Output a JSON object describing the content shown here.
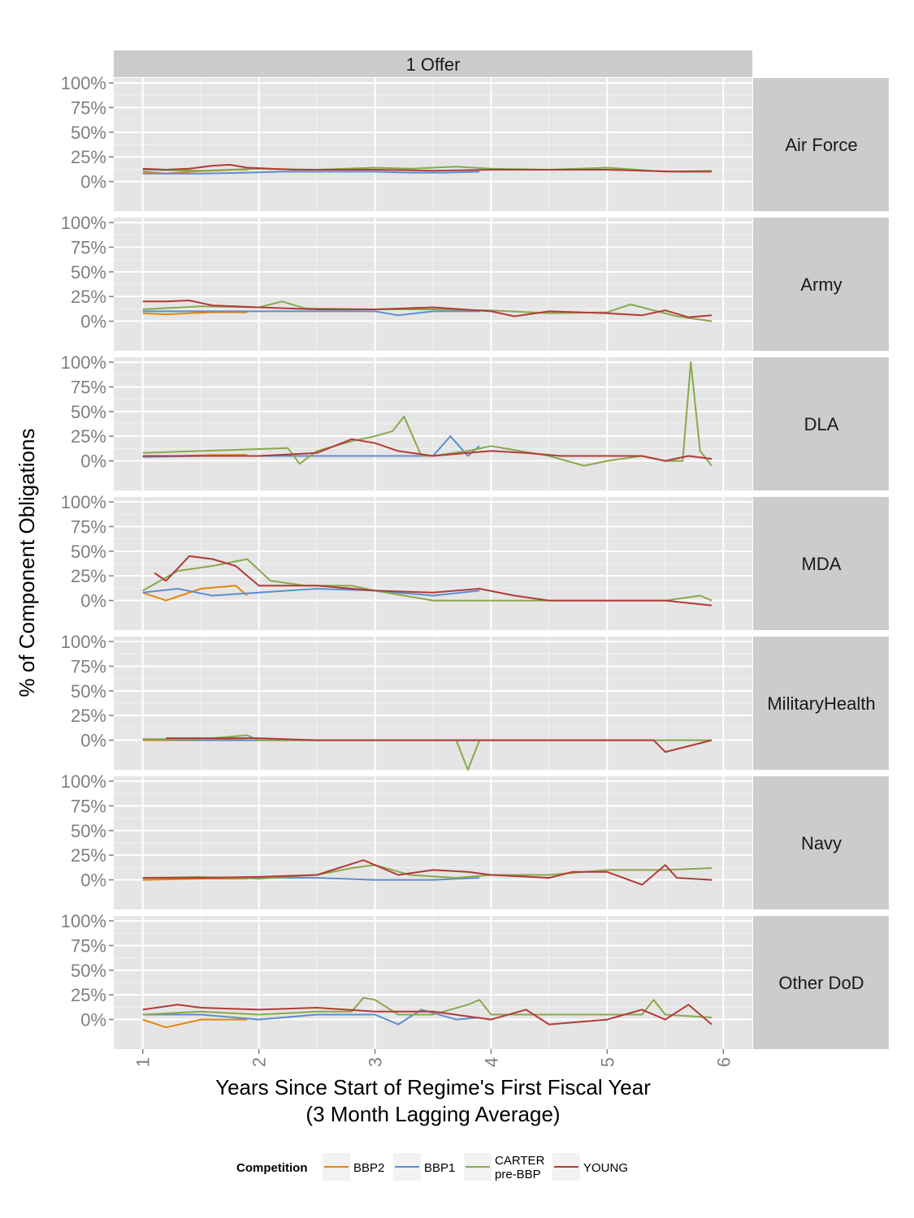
{
  "chart_data": {
    "type": "line",
    "column_strip": "1 Offer",
    "ylabel": "% of Component Obligations",
    "xlabel_line1": "Years Since Start of Regime's First Fiscal Year",
    "xlabel_line2": "(3 Month Lagging Average)",
    "xlim": [
      0.75,
      6.25
    ],
    "ylim": [
      -0.3,
      1.05
    ],
    "x_ticks": [
      1,
      2,
      3,
      4,
      5,
      6
    ],
    "x_tick_labels": [
      "1",
      "2",
      "3",
      "4",
      "5",
      "6"
    ],
    "y_ticks": [
      0,
      0.25,
      0.5,
      0.75,
      1
    ],
    "y_tick_labels": [
      "0%",
      "25%",
      "50%",
      "75%",
      "100%"
    ],
    "grid": true,
    "legend": {
      "title": "Competition",
      "position": "bottom",
      "entries": [
        {
          "key": "BBP2",
          "label_lines": [
            "BBP2"
          ],
          "color": "#E58606"
        },
        {
          "key": "BBP1",
          "label_lines": [
            "BBP1"
          ],
          "color": "#5D8ED0"
        },
        {
          "key": "CARTER",
          "label_lines": [
            "CARTER",
            "pre-BBP"
          ],
          "color": "#8AA84B"
        },
        {
          "key": "YOUNG",
          "label_lines": [
            "YOUNG"
          ],
          "color": "#B23A3A"
        }
      ]
    },
    "panels": [
      {
        "row": "Air Force",
        "series": [
          {
            "name": "BBP2",
            "x": [
              1.0,
              1.2,
              1.4,
              1.6,
              1.8,
              1.9
            ],
            "y": [
              0.1,
              0.08,
              0.1,
              0.11,
              0.12,
              0.12
            ]
          },
          {
            "name": "BBP1",
            "x": [
              1.0,
              1.5,
              1.9,
              2.2,
              2.6,
              3.0,
              3.3,
              3.6,
              3.9
            ],
            "y": [
              0.08,
              0.08,
              0.09,
              0.1,
              0.1,
              0.1,
              0.09,
              0.09,
              0.1
            ]
          },
          {
            "name": "CARTER",
            "x": [
              1.0,
              1.5,
              2.0,
              2.5,
              3.0,
              3.3,
              3.7,
              4.0,
              4.5,
              5.0,
              5.5,
              5.9
            ],
            "y": [
              0.12,
              0.11,
              0.13,
              0.12,
              0.14,
              0.13,
              0.15,
              0.13,
              0.12,
              0.14,
              0.1,
              0.11
            ]
          },
          {
            "name": "YOUNG",
            "x": [
              1.0,
              1.2,
              1.4,
              1.6,
              1.75,
              1.9,
              2.3,
              3.0,
              3.5,
              4.0,
              4.5,
              5.0,
              5.3,
              5.6,
              5.9
            ],
            "y": [
              0.13,
              0.12,
              0.13,
              0.16,
              0.17,
              0.14,
              0.12,
              0.12,
              0.11,
              0.12,
              0.12,
              0.12,
              0.11,
              0.1,
              0.1
            ]
          }
        ]
      },
      {
        "row": "Army",
        "series": [
          {
            "name": "BBP2",
            "x": [
              1.0,
              1.2,
              1.4,
              1.6,
              1.9
            ],
            "y": [
              0.08,
              0.07,
              0.08,
              0.09,
              0.09
            ]
          },
          {
            "name": "BBP1",
            "x": [
              1.0,
              1.5,
              2.0,
              2.5,
              3.0,
              3.2,
              3.5,
              3.9
            ],
            "y": [
              0.1,
              0.1,
              0.1,
              0.1,
              0.1,
              0.06,
              0.1,
              0.1
            ]
          },
          {
            "name": "CARTER",
            "x": [
              1.0,
              1.5,
              2.0,
              2.2,
              2.4,
              3.0,
              3.5,
              4.0,
              4.5,
              5.0,
              5.2,
              5.6,
              5.9
            ],
            "y": [
              0.12,
              0.15,
              0.14,
              0.2,
              0.13,
              0.12,
              0.12,
              0.11,
              0.08,
              0.09,
              0.17,
              0.05,
              0.0
            ]
          },
          {
            "name": "YOUNG",
            "x": [
              1.0,
              1.2,
              1.4,
              1.6,
              2.0,
              2.5,
              3.0,
              3.5,
              4.0,
              4.2,
              4.5,
              5.0,
              5.3,
              5.5,
              5.7,
              5.9
            ],
            "y": [
              0.2,
              0.2,
              0.21,
              0.16,
              0.14,
              0.12,
              0.12,
              0.14,
              0.1,
              0.05,
              0.1,
              0.08,
              0.06,
              0.11,
              0.04,
              0.06
            ]
          }
        ]
      },
      {
        "row": "DLA",
        "series": [
          {
            "name": "BBP2",
            "x": [
              1.0,
              1.3,
              1.6,
              1.9
            ],
            "y": [
              0.05,
              0.05,
              0.06,
              0.06
            ]
          },
          {
            "name": "BBP1",
            "x": [
              1.0,
              1.5,
              2.0,
              2.5,
              2.8,
              3.0,
              3.2,
              3.5,
              3.65,
              3.8,
              3.9
            ],
            "y": [
              0.04,
              0.05,
              0.05,
              0.05,
              0.05,
              0.05,
              0.05,
              0.05,
              0.25,
              0.05,
              0.15
            ]
          },
          {
            "name": "CARTER",
            "x": [
              1.0,
              1.5,
              2.0,
              2.25,
              2.35,
              2.5,
              2.8,
              3.0,
              3.15,
              3.25,
              3.4,
              3.5,
              3.8,
              4.0,
              4.5,
              4.8,
              5.0,
              5.3,
              5.5,
              5.65,
              5.72,
              5.8,
              5.9
            ],
            "y": [
              0.08,
              0.1,
              0.12,
              0.13,
              -0.03,
              0.1,
              0.2,
              0.25,
              0.3,
              0.45,
              0.05,
              0.05,
              0.1,
              0.15,
              0.05,
              -0.05,
              0.0,
              0.05,
              0.0,
              0.0,
              1.0,
              0.1,
              -0.05
            ]
          },
          {
            "name": "YOUNG",
            "x": [
              1.0,
              1.5,
              2.0,
              2.5,
              2.8,
              3.0,
              3.2,
              3.5,
              3.8,
              4.0,
              4.3,
              4.6,
              4.8,
              5.0,
              5.3,
              5.5,
              5.7,
              5.9
            ],
            "y": [
              0.05,
              0.05,
              0.05,
              0.08,
              0.22,
              0.18,
              0.1,
              0.05,
              0.08,
              0.1,
              0.08,
              0.05,
              0.05,
              0.05,
              0.05,
              0.0,
              0.05,
              0.02
            ]
          }
        ]
      },
      {
        "row": "MDA",
        "series": [
          {
            "name": "BBP2",
            "x": [
              1.0,
              1.2,
              1.5,
              1.8,
              1.9
            ],
            "y": [
              0.08,
              0.0,
              0.12,
              0.15,
              0.05
            ]
          },
          {
            "name": "BBP1",
            "x": [
              1.0,
              1.3,
              1.6,
              2.0,
              2.5,
              3.0,
              3.5,
              3.9
            ],
            "y": [
              0.08,
              0.12,
              0.05,
              0.08,
              0.12,
              0.1,
              0.05,
              0.1
            ]
          },
          {
            "name": "CARTER",
            "x": [
              1.0,
              1.3,
              1.6,
              1.9,
              2.1,
              2.4,
              2.8,
              3.0,
              3.5,
              4.0,
              4.5,
              5.0,
              5.5,
              5.8,
              5.9
            ],
            "y": [
              0.1,
              0.3,
              0.35,
              0.42,
              0.2,
              0.15,
              0.15,
              0.1,
              0.0,
              0.0,
              0.0,
              0.0,
              0.0,
              0.05,
              0.0
            ]
          },
          {
            "name": "YOUNG",
            "x": [
              1.1,
              1.2,
              1.4,
              1.6,
              1.8,
              2.0,
              2.5,
              3.0,
              3.5,
              3.9,
              4.2,
              4.5,
              5.0,
              5.5,
              5.9
            ],
            "y": [
              0.28,
              0.2,
              0.45,
              0.42,
              0.35,
              0.15,
              0.15,
              0.1,
              0.08,
              0.12,
              0.05,
              0.0,
              0.0,
              0.0,
              -0.05
            ]
          }
        ]
      },
      {
        "row": "MilitaryHealth",
        "series": [
          {
            "name": "BBP2",
            "x": [
              1.0,
              1.5,
              1.9
            ],
            "y": [
              0.0,
              0.0,
              0.02
            ]
          },
          {
            "name": "BBP1",
            "x": [
              1.0,
              1.5,
              2.0,
              2.5,
              3.0,
              3.5,
              3.9
            ],
            "y": [
              0.01,
              0.0,
              0.0,
              0.0,
              0.0,
              0.0,
              0.0
            ]
          },
          {
            "name": "CARTER",
            "x": [
              1.0,
              1.5,
              1.9,
              2.0,
              2.5,
              3.0,
              3.6,
              3.7,
              3.8,
              3.9,
              4.5,
              5.0,
              5.5,
              5.9
            ],
            "y": [
              0.01,
              0.01,
              0.05,
              0.0,
              0.0,
              0.0,
              0.0,
              0.0,
              -0.3,
              0.0,
              0.0,
              0.0,
              0.0,
              0.0
            ]
          },
          {
            "name": "YOUNG",
            "x": [
              1.2,
              1.5,
              2.0,
              2.5,
              3.0,
              4.0,
              5.0,
              5.4,
              5.5,
              5.9
            ],
            "y": [
              0.02,
              0.02,
              0.02,
              0.0,
              0.0,
              0.0,
              0.0,
              0.0,
              -0.12,
              0.0
            ]
          }
        ]
      },
      {
        "row": "Navy",
        "series": [
          {
            "name": "BBP2",
            "x": [
              1.0,
              1.5,
              1.9
            ],
            "y": [
              0.0,
              0.01,
              0.01
            ]
          },
          {
            "name": "BBP1",
            "x": [
              1.0,
              1.5,
              2.0,
              2.5,
              3.0,
              3.5,
              3.9
            ],
            "y": [
              0.02,
              0.02,
              0.02,
              0.02,
              0.0,
              0.0,
              0.02
            ]
          },
          {
            "name": "CARTER",
            "x": [
              1.0,
              1.5,
              2.0,
              2.5,
              2.8,
              3.0,
              3.3,
              3.7,
              4.0,
              4.5,
              5.0,
              5.5,
              5.9
            ],
            "y": [
              0.02,
              0.03,
              0.01,
              0.05,
              0.12,
              0.15,
              0.05,
              0.02,
              0.05,
              0.05,
              0.1,
              0.1,
              0.12
            ]
          },
          {
            "name": "YOUNG",
            "x": [
              1.0,
              1.5,
              2.0,
              2.5,
              2.9,
              3.0,
              3.2,
              3.5,
              3.8,
              4.0,
              4.5,
              4.7,
              5.0,
              5.3,
              5.5,
              5.6,
              5.9
            ],
            "y": [
              0.02,
              0.02,
              0.03,
              0.05,
              0.2,
              0.15,
              0.05,
              0.1,
              0.08,
              0.05,
              0.02,
              0.08,
              0.08,
              -0.05,
              0.15,
              0.02,
              0.0
            ]
          }
        ]
      },
      {
        "row": "Other DoD",
        "series": [
          {
            "name": "BBP2",
            "x": [
              1.0,
              1.2,
              1.5,
              1.9
            ],
            "y": [
              0.0,
              -0.08,
              0.0,
              0.0
            ]
          },
          {
            "name": "BBP1",
            "x": [
              1.0,
              1.5,
              2.0,
              2.5,
              3.0,
              3.2,
              3.4,
              3.7,
              3.9
            ],
            "y": [
              0.05,
              0.05,
              0.0,
              0.05,
              0.05,
              -0.05,
              0.1,
              0.0,
              0.02
            ]
          },
          {
            "name": "CARTER",
            "x": [
              1.0,
              1.5,
              2.0,
              2.5,
              2.8,
              2.9,
              3.0,
              3.2,
              3.5,
              3.8,
              3.9,
              4.0,
              4.5,
              5.0,
              5.3,
              5.4,
              5.5,
              5.9
            ],
            "y": [
              0.05,
              0.08,
              0.05,
              0.08,
              0.08,
              0.22,
              0.2,
              0.05,
              0.05,
              0.15,
              0.2,
              0.05,
              0.05,
              0.05,
              0.05,
              0.2,
              0.05,
              0.02
            ]
          },
          {
            "name": "YOUNG",
            "x": [
              1.0,
              1.3,
              1.5,
              2.0,
              2.5,
              3.0,
              3.5,
              4.0,
              4.3,
              4.5,
              5.0,
              5.3,
              5.5,
              5.7,
              5.9
            ],
            "y": [
              0.1,
              0.15,
              0.12,
              0.1,
              0.12,
              0.08,
              0.08,
              0.0,
              0.1,
              -0.05,
              0.0,
              0.1,
              0.0,
              0.15,
              -0.05
            ]
          }
        ]
      }
    ]
  }
}
